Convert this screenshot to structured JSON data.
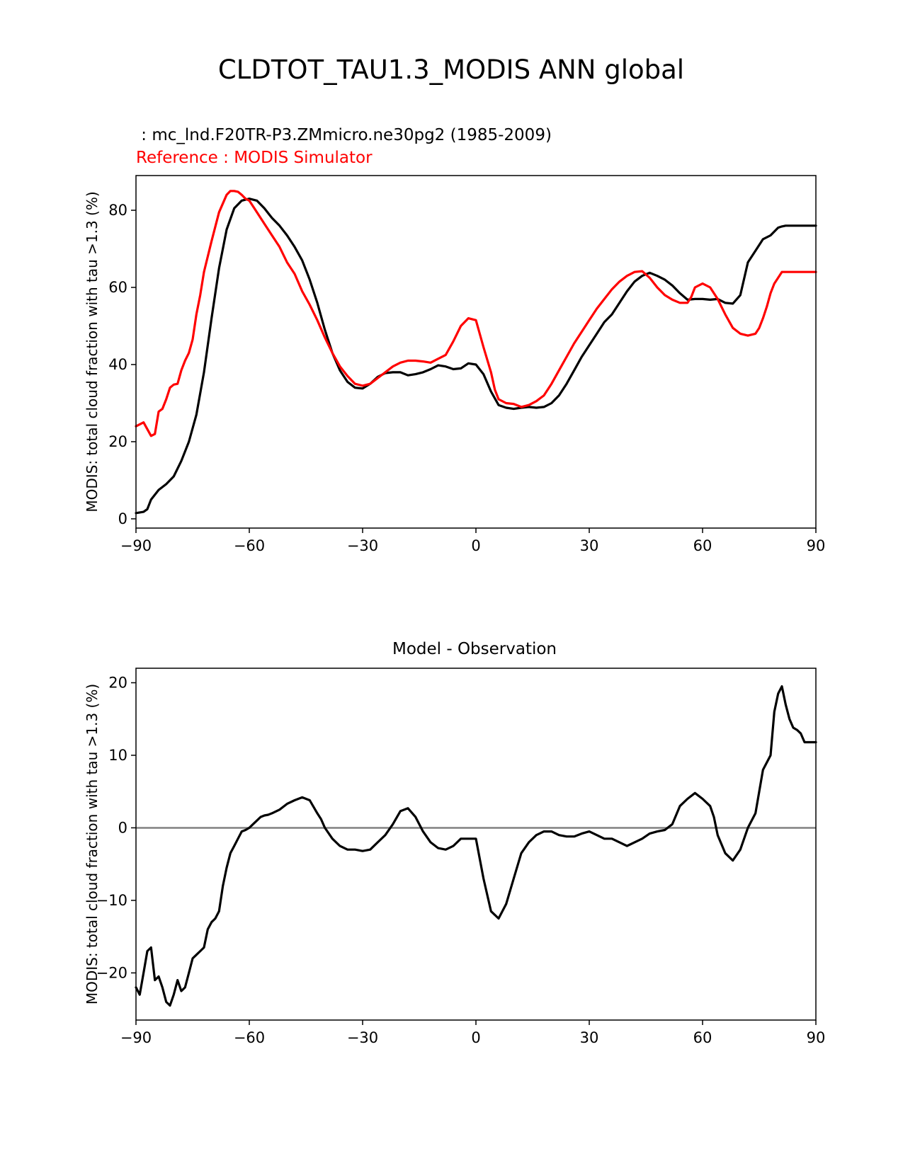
{
  "figure": {
    "title": "CLDTOT_TAU1.3_MODIS ANN global"
  },
  "chart_data": [
    {
      "type": "line",
      "test_label": " : mc_lnd.F20TR-P3.ZMmicro.ne30pg2 (1985-2009)",
      "ref_label": "Reference : MODIS Simulator",
      "title": "",
      "xlabel": "",
      "ylabel": "MODIS: total cloud fraction with tau >1.3 (%)",
      "xlim": [
        -90,
        90
      ],
      "ylim": [
        -2.4,
        89
      ],
      "xticks": [
        -90,
        -60,
        -30,
        0,
        30,
        60,
        90
      ],
      "xtick_labels": [
        "−90",
        "−60",
        "−30",
        "0",
        "30",
        "60",
        "90"
      ],
      "yticks": [
        0,
        20,
        40,
        60,
        80
      ],
      "ytick_labels": [
        "0",
        "20",
        "40",
        "60",
        "80"
      ],
      "grid": false,
      "series": [
        {
          "color": "#000000",
          "x": [
            -90,
            -88,
            -87,
            -86,
            -84,
            -82,
            -80,
            -78,
            -76,
            -74,
            -72,
            -70,
            -68,
            -66,
            -64,
            -62,
            -60,
            -58,
            -56,
            -54,
            -52,
            -50,
            -48,
            -46,
            -44,
            -42,
            -40,
            -38,
            -36,
            -34,
            -32,
            -30,
            -28,
            -26,
            -24,
            -22,
            -20,
            -18,
            -16,
            -14,
            -12,
            -10,
            -8,
            -6,
            -4,
            -2,
            0,
            2,
            4,
            6,
            8,
            10,
            12,
            14,
            16,
            18,
            20,
            22,
            24,
            26,
            28,
            30,
            32,
            34,
            36,
            38,
            40,
            42,
            44,
            46,
            48,
            50,
            52,
            54,
            56,
            58,
            60,
            62,
            64,
            66,
            68,
            70,
            72,
            74,
            76,
            78,
            80,
            81,
            82,
            84,
            86,
            87,
            88,
            89,
            90
          ],
          "y": [
            1.5,
            1.8,
            2.5,
            5.0,
            7.5,
            9.0,
            11.0,
            15.0,
            20.0,
            27.0,
            38.0,
            52.0,
            65.0,
            75.0,
            80.5,
            82.5,
            83.0,
            82.5,
            80.5,
            78.0,
            76.0,
            73.5,
            70.5,
            67.0,
            62.0,
            56.0,
            49.0,
            43.0,
            38.5,
            35.5,
            34.0,
            33.8,
            35.0,
            36.8,
            37.8,
            38.0,
            38.0,
            37.2,
            37.5,
            38.0,
            38.8,
            39.8,
            39.5,
            38.8,
            39.0,
            40.3,
            40.0,
            37.5,
            33.0,
            29.5,
            28.8,
            28.5,
            28.8,
            29.0,
            28.8,
            29.0,
            30.0,
            32.0,
            35.0,
            38.5,
            42.0,
            45.0,
            48.0,
            51.0,
            53.0,
            56.0,
            59.0,
            61.5,
            63.0,
            63.8,
            63.0,
            62.0,
            60.5,
            58.5,
            56.8,
            57.0,
            57.0,
            56.8,
            57.0,
            56.0,
            55.8,
            58.0,
            66.5,
            69.5,
            72.5,
            73.5,
            75.5,
            75.8,
            76.0,
            76.0,
            76.0,
            76.0,
            76.0,
            76.0,
            76.0
          ]
        },
        {
          "color": "#ff0000",
          "x": [
            -90,
            -88,
            -86,
            -85,
            -84,
            -83,
            -82,
            -81,
            -80,
            -79,
            -78,
            -77,
            -76,
            -75,
            -74,
            -73,
            -72,
            -70,
            -68,
            -66,
            -65,
            -64,
            -63,
            -62,
            -61,
            -60,
            -58,
            -56,
            -54,
            -52,
            -50,
            -48,
            -46,
            -44,
            -42,
            -40,
            -38,
            -36,
            -34,
            -32,
            -30,
            -28,
            -26,
            -24,
            -22,
            -20,
            -18,
            -16,
            -14,
            -12,
            -10,
            -8,
            -6,
            -4,
            -2,
            0,
            2,
            4,
            5,
            6,
            8,
            10,
            12,
            14,
            16,
            18,
            20,
            22,
            24,
            26,
            28,
            30,
            32,
            34,
            36,
            38,
            40,
            42,
            44,
            46,
            48,
            50,
            52,
            54,
            56,
            57,
            58,
            60,
            62,
            64,
            66,
            68,
            70,
            72,
            74,
            75,
            76,
            77,
            78,
            79,
            80,
            81,
            82,
            83,
            84,
            85,
            86,
            87,
            88,
            89,
            90
          ],
          "y": [
            24.0,
            25.0,
            21.5,
            22.0,
            27.8,
            28.5,
            31.0,
            34.0,
            34.8,
            35.0,
            38.5,
            41.0,
            43.0,
            46.5,
            53.0,
            58.0,
            64.0,
            72.0,
            79.5,
            84.0,
            85.0,
            85.0,
            84.8,
            84.0,
            83.0,
            82.5,
            79.5,
            76.5,
            73.5,
            70.5,
            66.5,
            63.5,
            59.0,
            55.5,
            51.5,
            47.0,
            43.0,
            39.5,
            37.0,
            35.0,
            34.5,
            35.0,
            36.5,
            38.0,
            39.5,
            40.5,
            41.0,
            41.0,
            40.8,
            40.5,
            41.5,
            42.5,
            46.0,
            50.0,
            52.0,
            51.5,
            44.5,
            38.0,
            33.5,
            31.0,
            30.0,
            29.8,
            29.0,
            29.5,
            30.5,
            32.0,
            35.0,
            38.5,
            42.0,
            45.5,
            48.5,
            51.5,
            54.5,
            57.0,
            59.5,
            61.5,
            63.0,
            64.0,
            64.2,
            62.5,
            60.0,
            58.0,
            56.8,
            56.0,
            56.0,
            57.5,
            60.0,
            61.0,
            60.0,
            57.0,
            53.0,
            49.5,
            48.0,
            47.5,
            48.0,
            49.5,
            52.0,
            55.0,
            58.5,
            61.0,
            62.5,
            64.0,
            64.0,
            64.0,
            64.0,
            64.0,
            64.0,
            64.0,
            64.0,
            64.0,
            64.0
          ]
        }
      ]
    },
    {
      "type": "line",
      "title": "Model - Observation",
      "xlabel": "",
      "ylabel": "MODIS: total cloud fraction with tau >1.3 (%)",
      "xlim": [
        -90,
        90
      ],
      "ylim": [
        -26.5,
        22
      ],
      "xticks": [
        -90,
        -60,
        -30,
        0,
        30,
        60,
        90
      ],
      "xtick_labels": [
        "−90",
        "−60",
        "−30",
        "0",
        "30",
        "60",
        "90"
      ],
      "yticks": [
        -20,
        -10,
        0,
        10,
        20
      ],
      "ytick_labels": [
        "−20",
        "−10",
        "0",
        "10",
        "20"
      ],
      "grid": false,
      "hline": {
        "y": 0,
        "color": "#808080"
      },
      "series": [
        {
          "color": "#000000",
          "x": [
            -90,
            -89,
            -88,
            -87,
            -86,
            -85,
            -84,
            -83,
            -82,
            -81,
            -80,
            -79,
            -78,
            -77,
            -76,
            -75,
            -74,
            -73,
            -72,
            -71,
            -70,
            -69,
            -68,
            -67,
            -66,
            -65,
            -64,
            -63,
            -62,
            -61,
            -60,
            -59,
            -58,
            -57,
            -56,
            -55,
            -54,
            -52,
            -50,
            -48,
            -46,
            -44,
            -42,
            -41,
            -40,
            -38,
            -36,
            -34,
            -32,
            -30,
            -28,
            -26,
            -24,
            -22,
            -20,
            -18,
            -16,
            -14,
            -12,
            -10,
            -8,
            -6,
            -4,
            -2,
            0,
            2,
            4,
            6,
            8,
            10,
            12,
            14,
            16,
            18,
            20,
            22,
            24,
            26,
            28,
            30,
            32,
            34,
            36,
            38,
            40,
            42,
            44,
            46,
            48,
            50,
            52,
            54,
            56,
            58,
            60,
            62,
            63,
            64,
            66,
            68,
            70,
            72,
            74,
            75,
            76,
            78,
            79,
            80,
            81,
            82,
            83,
            84,
            85,
            86,
            87,
            88,
            89,
            90
          ],
          "y": [
            -22.0,
            -23.0,
            -20.0,
            -17.0,
            -16.5,
            -21.0,
            -20.5,
            -22.0,
            -24.0,
            -24.5,
            -23.0,
            -21.0,
            -22.5,
            -22.0,
            -20.0,
            -18.0,
            -17.5,
            -17.0,
            -16.5,
            -14.0,
            -13.0,
            -12.5,
            -11.5,
            -8.0,
            -5.5,
            -3.5,
            -2.5,
            -1.5,
            -0.5,
            -0.3,
            0.0,
            0.5,
            1.0,
            1.5,
            1.7,
            1.8,
            2.0,
            2.5,
            3.3,
            3.8,
            4.2,
            3.8,
            2.0,
            1.2,
            0.0,
            -1.5,
            -2.5,
            -3.0,
            -3.0,
            -3.2,
            -3.0,
            -2.0,
            -1.0,
            0.5,
            2.3,
            2.7,
            1.5,
            -0.5,
            -2.0,
            -2.8,
            -3.0,
            -2.5,
            -1.5,
            -1.5,
            -1.5,
            -7.0,
            -11.5,
            -12.5,
            -10.5,
            -7.0,
            -3.5,
            -2.0,
            -1.0,
            -0.5,
            -0.5,
            -1.0,
            -1.2,
            -1.2,
            -0.8,
            -0.5,
            -1.0,
            -1.5,
            -1.5,
            -2.0,
            -2.5,
            -2.0,
            -1.5,
            -0.8,
            -0.5,
            -0.3,
            0.5,
            3.0,
            4.0,
            4.8,
            4.0,
            3.0,
            1.5,
            -1.0,
            -3.5,
            -4.5,
            -3.0,
            0.0,
            2.0,
            5.0,
            8.0,
            10.0,
            16.0,
            18.5,
            19.5,
            17.0,
            15.0,
            13.8,
            13.5,
            13.0,
            11.8,
            11.8,
            11.8,
            11.8
          ]
        }
      ]
    }
  ]
}
